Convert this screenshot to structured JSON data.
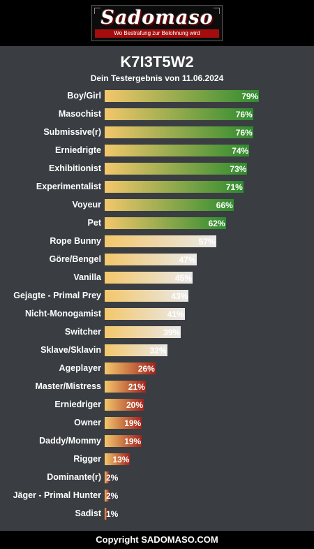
{
  "brand": {
    "logo_text": "Sadomaso",
    "tagline": "Wo Bestrafung zur Belohnung wird"
  },
  "header": {
    "title": "K7I3T5W2",
    "subtitle": "Dein Testergebnis von 11.06.2024"
  },
  "colors": {
    "bar_start": "#f3c76b",
    "green": "#2f8c2f",
    "light": "#e9e9e9",
    "red": "#a3231d"
  },
  "chart_data": {
    "type": "bar",
    "orientation": "horizontal",
    "title": "K7I3T5W2",
    "subtitle": "Dein Testergebnis von 11.06.2024",
    "unit": "%",
    "xlim": [
      0,
      100
    ],
    "categories": [
      "Boy/Girl",
      "Masochist",
      "Submissive(r)",
      "Erniedrigte",
      "Exhibitionist",
      "Experimentalist",
      "Voyeur",
      "Pet",
      "Rope Bunny",
      "Göre/Bengel",
      "Vanilla",
      "Gejagte - Primal Prey",
      "Nicht-Monogamist",
      "Switcher",
      "Sklave/Sklavin",
      "Ageplayer",
      "Master/Mistress",
      "Erniedriger",
      "Owner",
      "Daddy/Mommy",
      "Rigger",
      "Dominante(r)",
      "Jäger - Primal Hunter",
      "Sadist"
    ],
    "values": [
      79,
      76,
      76,
      74,
      73,
      71,
      66,
      62,
      57,
      47,
      45,
      43,
      41,
      39,
      32,
      26,
      21,
      20,
      19,
      19,
      13,
      2,
      2,
      1
    ],
    "labels": [
      "79%",
      "76%",
      "76%",
      "74%",
      "73%",
      "71%",
      "66%",
      "62%",
      "57%",
      "47%",
      "45%",
      "43%",
      "41%",
      "39%",
      "32%",
      "26%",
      "21%",
      "20%",
      "19%",
      "19%",
      "13%",
      "2%",
      "2%",
      "1%"
    ],
    "color_groups": [
      "green",
      "green",
      "green",
      "green",
      "green",
      "green",
      "green",
      "green",
      "light",
      "light",
      "light",
      "light",
      "light",
      "light",
      "light",
      "red",
      "red",
      "red",
      "red",
      "red",
      "red",
      "red",
      "red",
      "red"
    ]
  },
  "footer": {
    "copyright": "Copyright SADOMASO.COM"
  }
}
